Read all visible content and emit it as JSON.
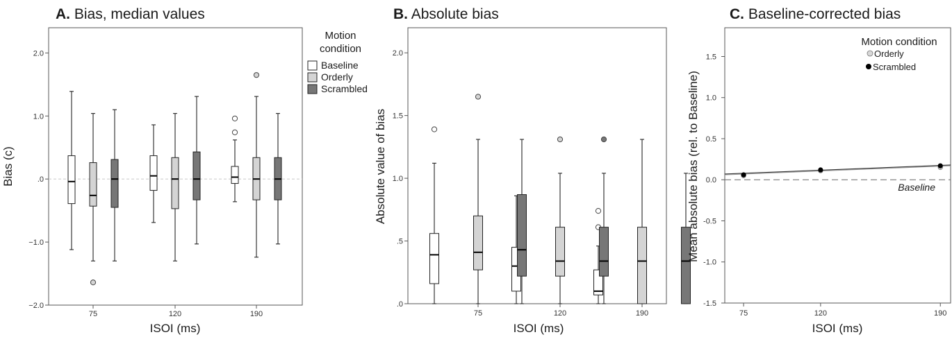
{
  "chart_data": [
    {
      "type": "box",
      "panel_letter": "A.",
      "title": "Bias, median values",
      "xlabel": "ISOI (ms)",
      "ylabel": "Bias (c)",
      "ylim": [
        -2.0,
        2.4
      ],
      "yticks": [
        {
          "value": -2.0,
          "label": "−2.0"
        },
        {
          "value": -1.0,
          "label": "−1.0"
        },
        {
          "value": 0.0,
          "label": ".0"
        },
        {
          "value": 1.0,
          "label": "1.0"
        },
        {
          "value": 2.0,
          "label": "2.0"
        }
      ],
      "categories": [
        "75",
        "120",
        "190"
      ],
      "reference_line": 0.0,
      "legend": {
        "title_lines": [
          "Motion",
          "condition"
        ],
        "placement": "right",
        "items": [
          "Baseline",
          "Orderly",
          "Scrambled"
        ]
      },
      "series": [
        {
          "name": "Baseline",
          "color": "#ffffff",
          "median_color": "#000000",
          "boxes": [
            {
              "min": -1.12,
              "q1": -0.39,
              "median": -0.04,
              "q3": 0.37,
              "max": 1.39,
              "outliers": []
            },
            {
              "min": -0.69,
              "q1": -0.18,
              "median": 0.05,
              "q3": 0.37,
              "max": 0.86,
              "outliers": []
            },
            {
              "min": -0.36,
              "q1": -0.07,
              "median": 0.03,
              "q3": 0.2,
              "max": 0.62,
              "outliers": [
                0.74,
                0.96
              ]
            }
          ]
        },
        {
          "name": "Orderly",
          "color": "#d4d4d4",
          "median_color": "#000000",
          "boxes": [
            {
              "min": -1.3,
              "q1": -0.43,
              "median": -0.26,
              "q3": 0.26,
              "max": 1.04,
              "outliers": [
                -1.64
              ]
            },
            {
              "min": -1.3,
              "q1": -0.47,
              "median": 0.0,
              "q3": 0.34,
              "max": 1.04,
              "outliers": []
            },
            {
              "min": -1.24,
              "q1": -0.33,
              "median": 0.0,
              "q3": 0.34,
              "max": 1.31,
              "outliers": [
                1.65
              ]
            }
          ]
        },
        {
          "name": "Scrambled",
          "color": "#777777",
          "median_color": "#000000",
          "boxes": [
            {
              "min": -1.3,
              "q1": -0.45,
              "median": 0.0,
              "q3": 0.31,
              "max": 1.1,
              "outliers": []
            },
            {
              "min": -1.03,
              "q1": -0.33,
              "median": 0.0,
              "q3": 0.43,
              "max": 1.31,
              "outliers": []
            },
            {
              "min": -1.03,
              "q1": -0.33,
              "median": 0.0,
              "q3": 0.34,
              "max": 1.04,
              "outliers": []
            }
          ]
        }
      ]
    },
    {
      "type": "box",
      "panel_letter": "B.",
      "title": "Absolute bias",
      "xlabel": "ISOI (ms)",
      "ylabel": "Absolute value of bias",
      "ylim": [
        0.0,
        2.2
      ],
      "yticks": [
        {
          "value": 0.0,
          "label": ".0"
        },
        {
          "value": 0.5,
          "label": ".5"
        },
        {
          "value": 1.0,
          "label": "1.0"
        },
        {
          "value": 1.5,
          "label": "1.5"
        },
        {
          "value": 2.0,
          "label": "2.0"
        }
      ],
      "categories": [
        "75",
        "120",
        "190"
      ],
      "series": [
        {
          "name": "Baseline",
          "color": "#ffffff",
          "median_color": "#000000",
          "boxes": [
            {
              "min": 0.0,
              "q1": 0.16,
              "median": 0.39,
              "q3": 0.56,
              "max": 1.12,
              "outliers": [
                1.39
              ]
            },
            {
              "min": 0.0,
              "q1": 0.1,
              "median": 0.3,
              "q3": 0.45,
              "max": 0.86,
              "outliers": []
            },
            {
              "min": 0.0,
              "q1": 0.07,
              "median": 0.1,
              "q3": 0.27,
              "max": 0.46,
              "outliers": [
                0.61,
                0.74
              ]
            }
          ]
        },
        {
          "name": "Orderly",
          "color": "#d4d4d4",
          "median_color": "#000000",
          "boxes": [
            {
              "min": 0.0,
              "q1": 0.27,
              "median": 0.41,
              "q3": 0.7,
              "max": 1.31,
              "outliers": [
                1.65
              ]
            },
            {
              "min": 0.0,
              "q1": 0.22,
              "median": 0.34,
              "q3": 0.61,
              "max": 1.04,
              "outliers": [
                1.31
              ]
            },
            {
              "min": 0.0,
              "q1": 0.0,
              "median": 0.34,
              "q3": 0.61,
              "max": 1.31,
              "outliers": []
            }
          ]
        },
        {
          "name": "Scrambled",
          "color": "#777777",
          "median_color": "#000000",
          "boxes": [
            {
              "min": 0.0,
              "q1": 0.22,
              "median": 0.43,
              "q3": 0.87,
              "max": 1.31,
              "outliers": []
            },
            {
              "min": 0.0,
              "q1": 0.22,
              "median": 0.34,
              "q3": 0.61,
              "max": 1.04,
              "outliers": [
                1.31
              ]
            },
            {
              "min": 0.0,
              "q1": 0.0,
              "median": 0.34,
              "q3": 0.61,
              "max": 1.04,
              "outliers": []
            }
          ]
        }
      ]
    },
    {
      "type": "scatter",
      "panel_letter": "C.",
      "title": "Baseline-corrected bias",
      "xlabel": "ISOI (ms)",
      "ylabel": "Mean absolute bias (rel. to Baseline)",
      "xlim": [
        64,
        196
      ],
      "ylim": [
        -1.5,
        1.85
      ],
      "xticks": [
        75,
        120,
        190
      ],
      "yticks": [
        {
          "value": -1.5,
          "label": "-1.5"
        },
        {
          "value": -1.0,
          "label": "-1.0"
        },
        {
          "value": -0.5,
          "label": "-0.5"
        },
        {
          "value": 0.0,
          "label": "0.0"
        },
        {
          "value": 0.5,
          "label": "0.5"
        },
        {
          "value": 1.0,
          "label": "1.0"
        },
        {
          "value": 1.5,
          "label": "1.5"
        }
      ],
      "reference_line": {
        "value": 0.0,
        "label": "Baseline"
      },
      "legend": {
        "title": "Motion condition",
        "placement": "top-right",
        "items": [
          "Orderly",
          "Scrambled"
        ]
      },
      "series": [
        {
          "name": "Orderly",
          "color": "#c8c8c8",
          "x": [
            75,
            120,
            190
          ],
          "y": [
            0.05,
            0.11,
            0.15
          ],
          "fit": [
            0.06,
            0.17
          ]
        },
        {
          "name": "Scrambled",
          "color": "#000000",
          "x": [
            75,
            120,
            190
          ],
          "y": [
            0.06,
            0.12,
            0.17
          ],
          "fit": [
            0.07,
            0.18
          ]
        }
      ]
    }
  ]
}
